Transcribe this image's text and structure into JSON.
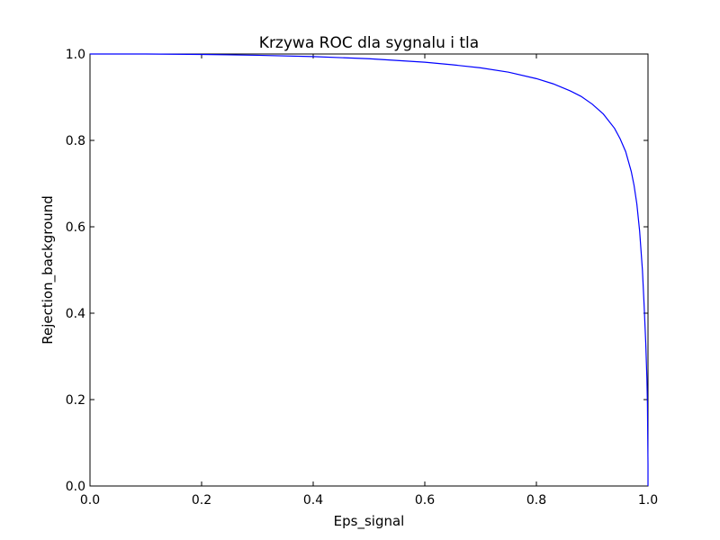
{
  "chart_data": {
    "type": "line",
    "title": "Krzywa ROC dla sygnalu i tla",
    "xlabel": "Eps_signal",
    "ylabel": "Rejection_background",
    "xlim": [
      0.0,
      1.0
    ],
    "ylim": [
      0.0,
      1.0
    ],
    "xticks": [
      "0.0",
      "0.2",
      "0.4",
      "0.6",
      "0.8",
      "1.0"
    ],
    "yticks": [
      "0.0",
      "0.2",
      "0.4",
      "0.6",
      "0.8",
      "1.0"
    ],
    "grid": false,
    "legend": "none",
    "series": [
      {
        "color": "#0000ff",
        "x": [
          0.0,
          0.1,
          0.2,
          0.3,
          0.4,
          0.5,
          0.6,
          0.65,
          0.7,
          0.75,
          0.8,
          0.83,
          0.86,
          0.88,
          0.9,
          0.92,
          0.94,
          0.95,
          0.96,
          0.97,
          0.975,
          0.98,
          0.985,
          0.99,
          0.993,
          0.996,
          0.998,
          0.999,
          1.0,
          1.0
        ],
        "y": [
          1.0,
          1.0,
          0.999,
          0.997,
          0.994,
          0.989,
          0.981,
          0.975,
          0.968,
          0.958,
          0.943,
          0.931,
          0.915,
          0.902,
          0.884,
          0.861,
          0.828,
          0.804,
          0.774,
          0.728,
          0.696,
          0.653,
          0.59,
          0.5,
          0.42,
          0.33,
          0.25,
          0.19,
          0.05,
          0.0
        ]
      }
    ]
  }
}
